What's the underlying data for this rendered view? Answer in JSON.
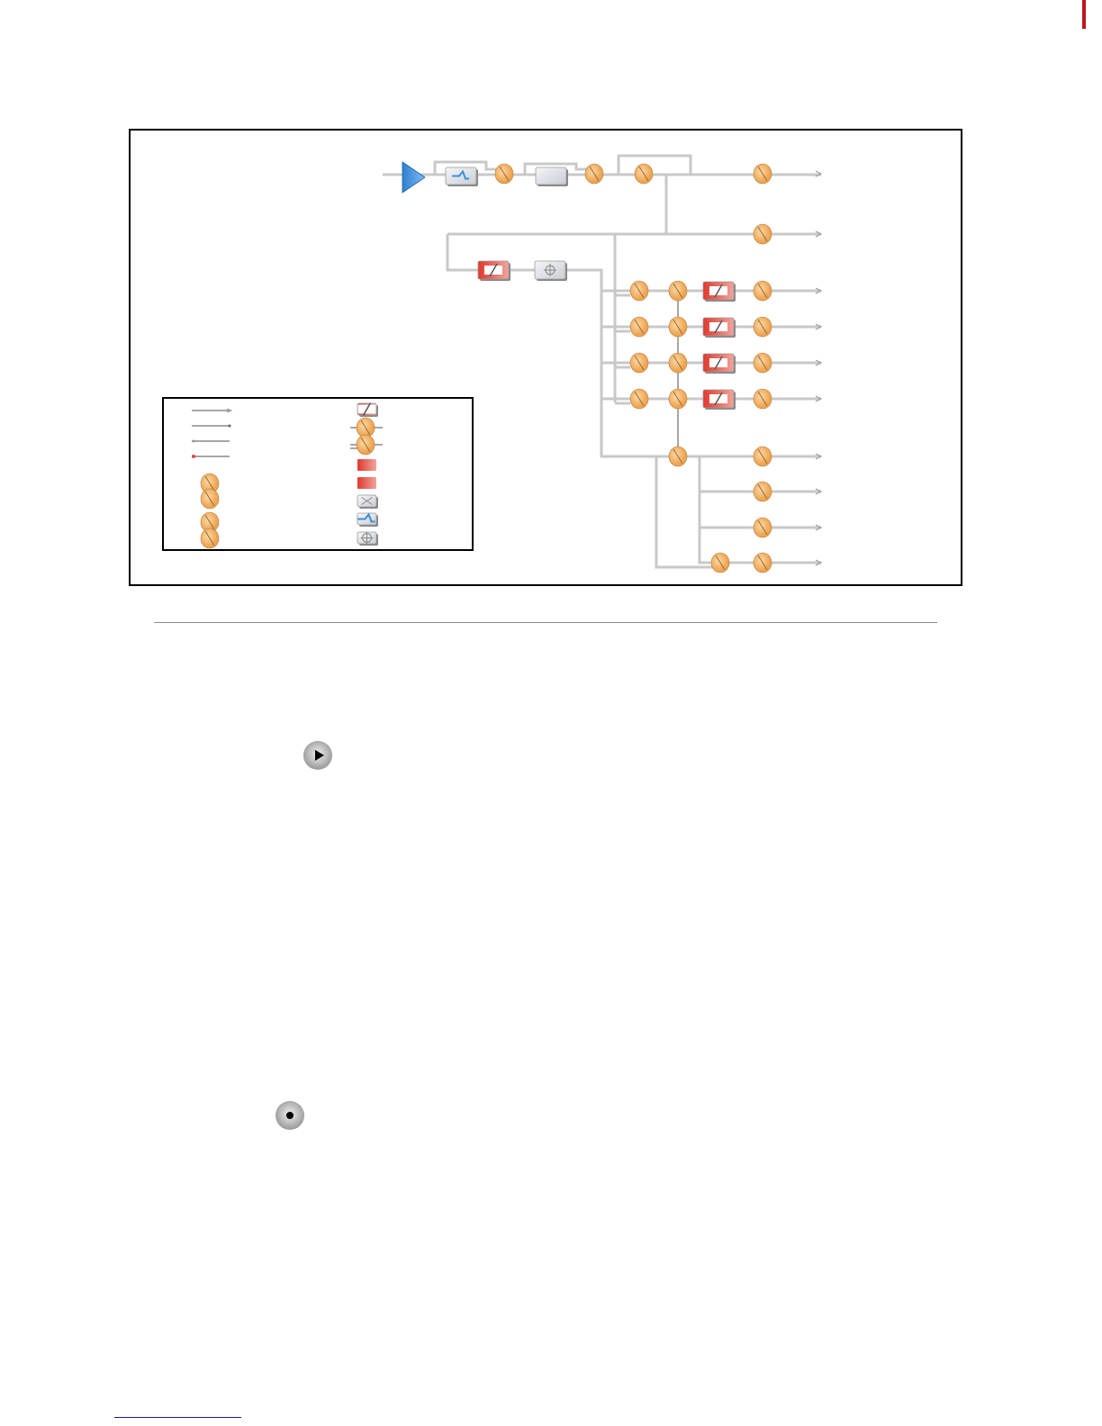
{
  "colors": {
    "edge_mark": "#c0151b",
    "frame": "#000000",
    "line": "#c8c8c8",
    "line_dark": "#8a8a8a",
    "node": "#f5b56a",
    "node_stroke": "#b07a3c",
    "red_block": "#e2453a",
    "blue_block": "#3a8fd8",
    "amp": "#4a9be0",
    "footnote_rule": "#1a1a9a"
  },
  "icons": [
    "amplifier-icon",
    "filter-block-icon",
    "plain-block-icon",
    "attenuator-block-icon",
    "crosshair-block-icon",
    "splitter-node-icon",
    "arrow-output-icon",
    "play-icon",
    "record-icon"
  ],
  "legend": {
    "line_symbols": [
      "arrow-output-line",
      "dot-end-line",
      "arrow-input-line",
      "red-dot-input-line"
    ],
    "block_symbols": [
      "attenuator-block",
      "inline-node",
      "double-line-node",
      "red-block",
      "red-block-output",
      "crossover-block",
      "filter-block",
      "crosshair-block"
    ],
    "node_pairs": [
      "linked-node-pair",
      "linked-crossed-node-pair"
    ]
  }
}
